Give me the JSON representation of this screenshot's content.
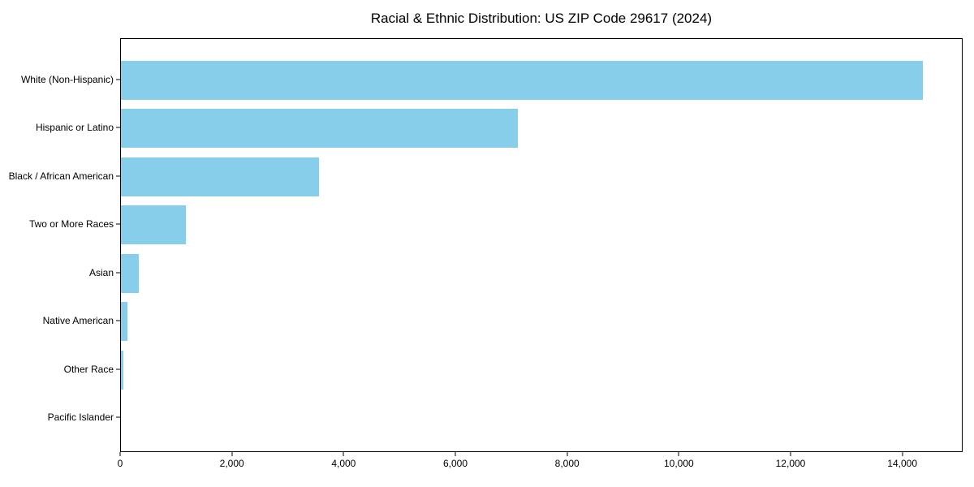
{
  "chart_data": {
    "type": "bar",
    "orientation": "horizontal",
    "title": "Racial & Ethnic Distribution: US ZIP Code 29617 (2024)",
    "categories": [
      "White (Non-Hispanic)",
      "Hispanic or Latino",
      "Black / African American",
      "Two or More Races",
      "Asian",
      "Native American",
      "Other Race",
      "Pacific Islander"
    ],
    "values": [
      14360,
      7110,
      3540,
      1160,
      320,
      120,
      50,
      0
    ],
    "xlabel": "",
    "ylabel": "",
    "xlim": [
      0,
      15080
    ],
    "xticks": [
      0,
      2000,
      4000,
      6000,
      8000,
      10000,
      12000,
      14000
    ],
    "xtick_labels": [
      "0",
      "2,000",
      "4,000",
      "6,000",
      "8,000",
      "10,000",
      "12,000",
      "14,000"
    ],
    "bar_color": "#87CEEB",
    "grid": false,
    "legend": null
  }
}
